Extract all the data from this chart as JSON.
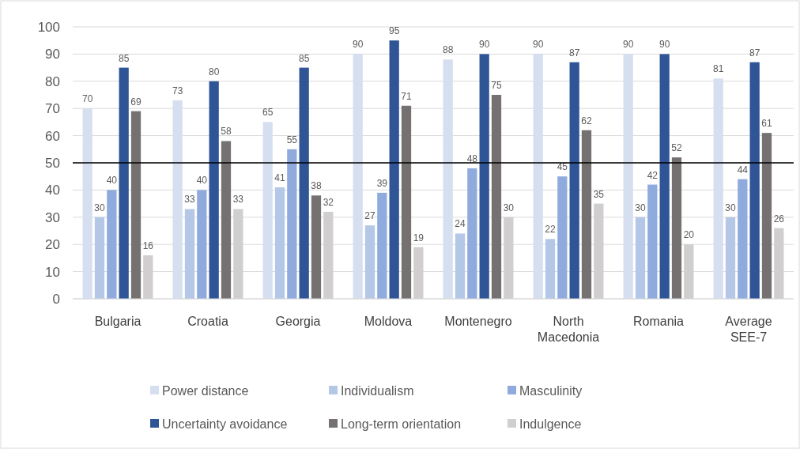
{
  "chart_data": {
    "type": "bar",
    "categories": [
      "Bulgaria",
      "Croatia",
      "Georgia",
      "Moldova",
      "Montenegro",
      "North Macedonia",
      "Romania",
      "Average SEE-7"
    ],
    "series": [
      {
        "name": "Power distance",
        "color": "#d6dff0",
        "values": [
          70,
          73,
          65,
          90,
          88,
          90,
          90,
          81
        ]
      },
      {
        "name": "Individualism",
        "color": "#b4c7e7",
        "values": [
          30,
          33,
          41,
          27,
          24,
          22,
          30,
          30
        ]
      },
      {
        "name": "Masculinity",
        "color": "#8faadc",
        "values": [
          40,
          40,
          55,
          39,
          48,
          45,
          42,
          44
        ]
      },
      {
        "name": "Uncertainty avoidance",
        "color": "#2f5597",
        "values": [
          85,
          80,
          85,
          95,
          90,
          87,
          90,
          87
        ]
      },
      {
        "name": "Long-term orientation",
        "color": "#767171",
        "values": [
          69,
          58,
          38,
          71,
          75,
          62,
          52,
          61
        ]
      },
      {
        "name": "Indulgence",
        "color": "#d0cece",
        "values": [
          16,
          33,
          32,
          19,
          30,
          35,
          20,
          26
        ]
      }
    ],
    "ylim": [
      0,
      100
    ],
    "yticks": [
      0,
      10,
      20,
      30,
      40,
      50,
      60,
      70,
      80,
      90,
      100
    ],
    "grid": "y",
    "legend": "bottom",
    "data_labels": true,
    "ref_lines": [
      {
        "axis": "y",
        "value": 50,
        "color": "#000000"
      }
    ]
  }
}
